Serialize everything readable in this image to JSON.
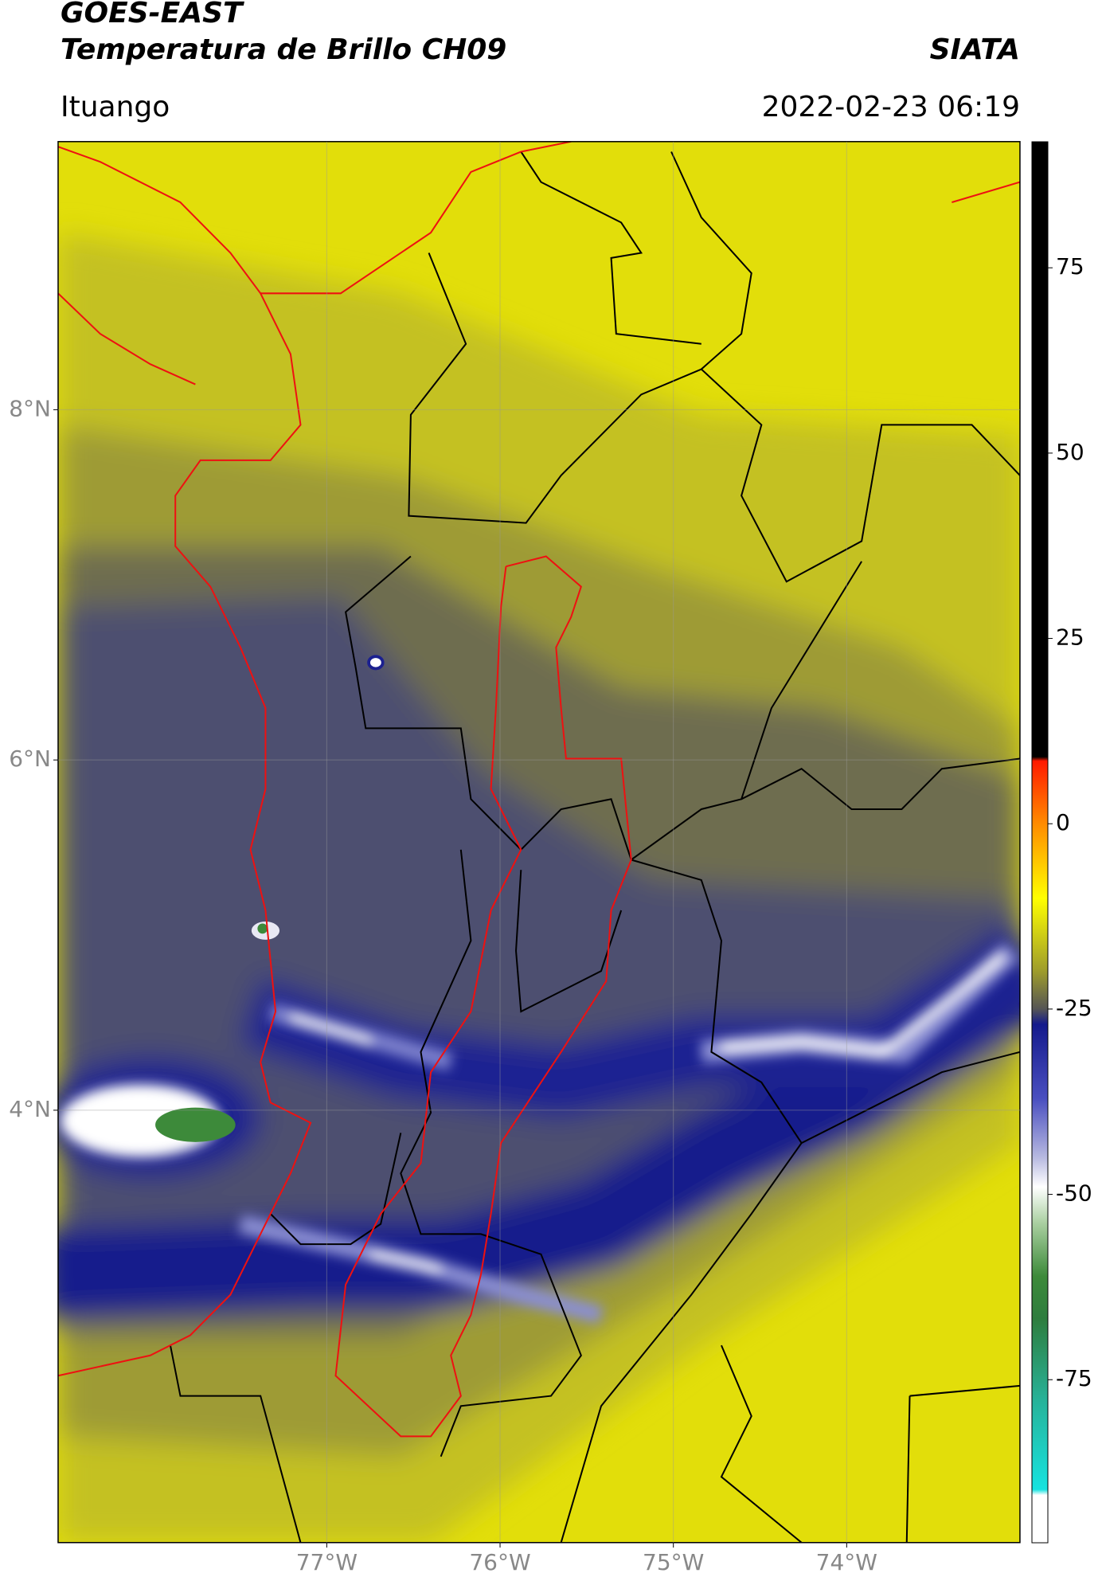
{
  "header": {
    "satellite": "GOES-EAST",
    "product": "Temperatura de Brillo CH09",
    "source": "SIATA",
    "location": "Ituango",
    "datetime": "2022-02-23 06:19"
  },
  "map": {
    "xlim": [
      -78.55,
      -73.0
    ],
    "ylim": [
      1.53,
      9.53
    ],
    "xticks": [
      {
        "value": -77,
        "label": "77°W"
      },
      {
        "value": -76,
        "label": "76°W"
      },
      {
        "value": -75,
        "label": "75°W"
      },
      {
        "value": -74,
        "label": "74°W"
      }
    ],
    "yticks": [
      {
        "value": 8,
        "label": "8°N"
      },
      {
        "value": 6,
        "label": "6°N"
      },
      {
        "value": 4,
        "label": "4°N"
      }
    ]
  },
  "colorbar": {
    "lim": [
      -97,
      92
    ],
    "ticks": [
      75,
      50,
      25,
      0,
      -25,
      -50,
      -75
    ]
  }
}
